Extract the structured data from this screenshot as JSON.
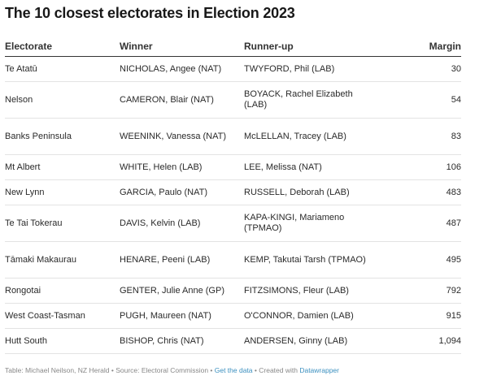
{
  "chart_data": {
    "type": "table",
    "title": "The 10 closest electorates in Election 2023",
    "columns": [
      "Electorate",
      "Winner",
      "Runner-up",
      "Margin"
    ],
    "rows": [
      {
        "electorate": "Te Atatū",
        "winner": "NICHOLAS, Angee (NAT)",
        "runner_up": "TWYFORD, Phil (LAB)",
        "margin": "30"
      },
      {
        "electorate": "Nelson",
        "winner": "CAMERON, Blair (NAT)",
        "runner_up": "BOYACK, Rachel Elizabeth (LAB)",
        "margin": "54"
      },
      {
        "electorate": "Banks Peninsula",
        "winner": "WEENINK, Vanessa (NAT)",
        "runner_up": "McLELLAN, Tracey (LAB)",
        "margin": "83"
      },
      {
        "electorate": "Mt Albert",
        "winner": "WHITE, Helen (LAB)",
        "runner_up": "LEE, Melissa (NAT)",
        "margin": "106"
      },
      {
        "electorate": "New Lynn",
        "winner": "GARCIA, Paulo (NAT)",
        "runner_up": "RUSSELL, Deborah (LAB)",
        "margin": "483"
      },
      {
        "electorate": "Te Tai Tokerau",
        "winner": "DAVIS, Kelvin (LAB)",
        "runner_up": "KAPA-KINGI, Mariameno (TPMAO)",
        "margin": "487"
      },
      {
        "electorate": "Tāmaki Makaurau",
        "winner": "HENARE, Peeni (LAB)",
        "runner_up": "KEMP, Takutai Tarsh (TPMAO)",
        "margin": "495"
      },
      {
        "electorate": "Rongotai",
        "winner": "GENTER, Julie Anne (GP)",
        "runner_up": "FITZSIMONS, Fleur (LAB)",
        "margin": "792"
      },
      {
        "electorate": "West Coast-Tasman",
        "winner": "PUGH, Maureen (NAT)",
        "runner_up": "O'CONNOR, Damien (LAB)",
        "margin": "915"
      },
      {
        "electorate": "Hutt South",
        "winner": "BISHOP, Chris (NAT)",
        "runner_up": "ANDERSEN, Ginny (LAB)",
        "margin": "1,094"
      }
    ]
  },
  "footer": {
    "source_text": "Table: Michael Neilson, NZ Herald • Source: Electoral Commission • ",
    "get_data_label": "Get the data",
    "created_with_text": " • Created with ",
    "datawrapper_label": "Datawrapper"
  },
  "colors": {
    "link": "#3a8fbf",
    "header_rule": "#333333",
    "row_rule": "#e3e3e3"
  }
}
